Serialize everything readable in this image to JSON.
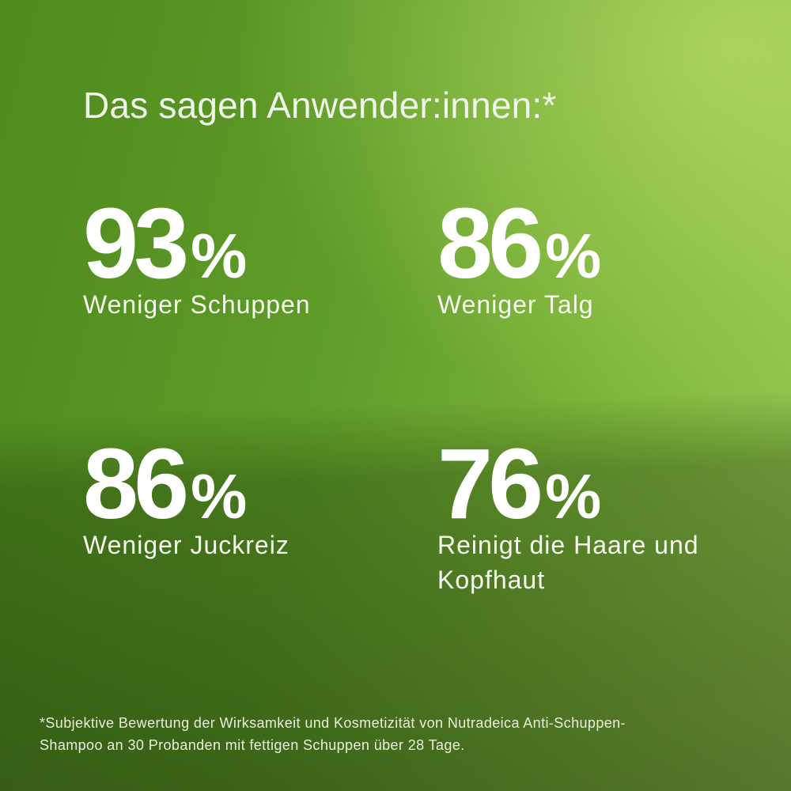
{
  "title": "Das sagen Anwender:innen:*",
  "stats": [
    {
      "value": "93",
      "unit": "%",
      "label": "Weniger Schuppen"
    },
    {
      "value": "86",
      "unit": "%",
      "label": "Weniger Talg"
    },
    {
      "value": "86",
      "unit": "%",
      "label": "Weniger Juckreiz"
    },
    {
      "value": "76",
      "unit": "%",
      "label": "Reinigt die Haare und Kopfhaut"
    }
  ],
  "footnote": {
    "lines": [
      "*Subjektive Bewertung der Wirksamkeit und Kosmetizität von Nutradeica Anti-Schuppen-",
      "Shampoo an 30 Probanden mit fettigen Schuppen über 28 Tage."
    ]
  },
  "colors": {
    "background_top_left": "#4e8a1d",
    "background_top_right": "#aad768",
    "background_bottom_left": "#3d660e",
    "background_bottom_right": "#4a7119",
    "stat_text": "#ffffff",
    "title_text": "#f0f5e9",
    "footnote_text": "#e9f1dc"
  }
}
